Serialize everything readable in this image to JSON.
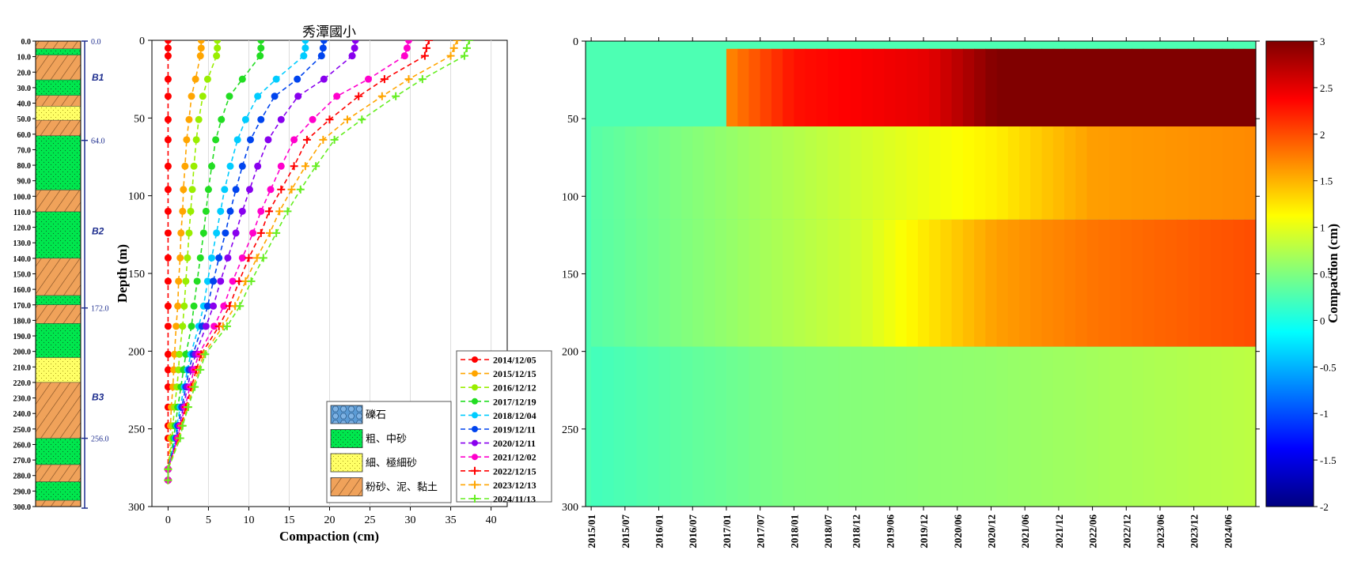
{
  "figure_title": "秀潭國小",
  "strata": {
    "depth_ticks": [
      "0.0",
      "10.0",
      "20.0",
      "30.0",
      "40.0",
      "50.0",
      "60.0",
      "70.0",
      "80.0",
      "90.0",
      "100.0",
      "110.0",
      "120.0",
      "130.0",
      "140.0",
      "150.0",
      "160.0",
      "170.0",
      "180.0",
      "190.0",
      "200.0",
      "210.0",
      "220.0",
      "230.0",
      "240.0",
      "250.0",
      "260.0",
      "270.0",
      "280.0",
      "290.0",
      "300.0"
    ],
    "boundary_labels": [
      {
        "depth": 0,
        "label": "0.0"
      },
      {
        "depth": 64,
        "label": "64.0"
      },
      {
        "depth": 172,
        "label": "172.0"
      },
      {
        "depth": 256,
        "label": "256.0"
      }
    ],
    "aquifer_labels": [
      {
        "depth": 23,
        "label": "B1"
      },
      {
        "depth": 122,
        "label": "B2"
      },
      {
        "depth": 229,
        "label": "B3"
      }
    ],
    "layers": [
      {
        "top": 0,
        "bottom": 5,
        "type": "silt"
      },
      {
        "top": 5,
        "bottom": 9,
        "type": "coarse"
      },
      {
        "top": 9,
        "bottom": 25,
        "type": "silt"
      },
      {
        "top": 25,
        "bottom": 35,
        "type": "coarse"
      },
      {
        "top": 35,
        "bottom": 42,
        "type": "silt"
      },
      {
        "top": 42,
        "bottom": 51,
        "type": "fine"
      },
      {
        "top": 51,
        "bottom": 61,
        "type": "silt"
      },
      {
        "top": 61,
        "bottom": 96,
        "type": "coarse"
      },
      {
        "top": 96,
        "bottom": 110,
        "type": "silt"
      },
      {
        "top": 110,
        "bottom": 140,
        "type": "coarse"
      },
      {
        "top": 140,
        "bottom": 164,
        "type": "silt"
      },
      {
        "top": 164,
        "bottom": 170,
        "type": "coarse"
      },
      {
        "top": 170,
        "bottom": 182,
        "type": "silt"
      },
      {
        "top": 182,
        "bottom": 204,
        "type": "coarse"
      },
      {
        "top": 204,
        "bottom": 220,
        "type": "fine"
      },
      {
        "top": 220,
        "bottom": 256,
        "type": "silt"
      },
      {
        "top": 256,
        "bottom": 273,
        "type": "coarse"
      },
      {
        "top": 273,
        "bottom": 284,
        "type": "silt"
      },
      {
        "top": 284,
        "bottom": 296,
        "type": "coarse"
      },
      {
        "top": 296,
        "bottom": 300,
        "type": "silt"
      }
    ]
  },
  "lithology_legend": [
    {
      "type": "gravel",
      "label": "礫石"
    },
    {
      "type": "coarse",
      "label": "粗、中砂"
    },
    {
      "type": "fine",
      "label": "細、極細砂"
    },
    {
      "type": "silt",
      "label": "粉砂、泥、黏土"
    }
  ],
  "chart_data": [
    {
      "type": "line",
      "xlabel": "Compaction (cm)",
      "ylabel": "Depth (m)",
      "xlim": [
        -2,
        42
      ],
      "ylim": [
        300,
        0
      ],
      "x_ticks": [
        "0",
        "5",
        "10",
        "15",
        "20",
        "25",
        "30",
        "35",
        "40"
      ],
      "y_ticks": [
        "0",
        "50",
        "100",
        "150",
        "200",
        "250",
        "300"
      ],
      "grid": "vertical",
      "legend_position": "lower-right",
      "depths": [
        0,
        5,
        10,
        25,
        36,
        51,
        64,
        81,
        96,
        110,
        124,
        140,
        155,
        171,
        184,
        202,
        212,
        223,
        236,
        248,
        256,
        276,
        283
      ],
      "series": [
        {
          "name": "2014/12/05",
          "color": "#ff0000",
          "marker": "circle",
          "values": [
            0,
            0,
            0,
            0,
            0,
            0,
            0,
            0,
            0,
            0,
            0,
            0,
            0,
            0,
            0,
            0,
            0,
            0,
            0,
            0,
            0,
            0,
            0
          ]
        },
        {
          "name": "2015/12/15",
          "color": "#ffa500",
          "marker": "circle",
          "values": [
            4.1,
            4.1,
            4.0,
            3.4,
            2.9,
            2.6,
            2.3,
            2.1,
            1.9,
            1.8,
            1.6,
            1.5,
            1.3,
            1.2,
            1.0,
            0.8,
            0.7,
            0.6,
            0.4,
            0.3,
            0.3,
            0.0,
            0.0
          ]
        },
        {
          "name": "2016/12/12",
          "color": "#99ee00",
          "marker": "circle",
          "values": [
            6.1,
            6.1,
            6.0,
            4.9,
            4.3,
            3.8,
            3.5,
            3.2,
            3.0,
            2.8,
            2.6,
            2.4,
            2.2,
            2.0,
            1.8,
            1.4,
            1.3,
            1.1,
            0.8,
            0.6,
            0.5,
            0.0,
            0.0
          ]
        },
        {
          "name": "2017/12/19",
          "color": "#22dd22",
          "marker": "circle",
          "values": [
            11.5,
            11.5,
            11.4,
            9.2,
            7.6,
            6.6,
            5.9,
            5.4,
            5.0,
            4.7,
            4.4,
            4.0,
            3.6,
            3.2,
            2.9,
            2.2,
            1.9,
            1.6,
            1.2,
            0.9,
            0.7,
            0.0,
            0.0
          ]
        },
        {
          "name": "2018/12/04",
          "color": "#00ccff",
          "marker": "circle",
          "values": [
            17.0,
            17.0,
            16.8,
            13.4,
            11.1,
            9.6,
            8.6,
            7.7,
            7.0,
            6.5,
            6.0,
            5.4,
            4.9,
            4.4,
            3.8,
            2.8,
            2.4,
            2.0,
            1.5,
            1.1,
            0.9,
            0.0,
            0.0
          ]
        },
        {
          "name": "2019/12/11",
          "color": "#0044ee",
          "marker": "circle",
          "values": [
            19.3,
            19.2,
            19.0,
            16.0,
            13.2,
            11.5,
            10.2,
            9.2,
            8.4,
            7.7,
            7.1,
            6.3,
            5.6,
            4.9,
            4.2,
            3.1,
            2.6,
            2.2,
            1.7,
            1.2,
            1.0,
            0.0,
            0.0
          ]
        },
        {
          "name": "2020/12/11",
          "color": "#8800ee",
          "marker": "circle",
          "values": [
            23.2,
            23.1,
            22.8,
            19.3,
            16.1,
            14.0,
            12.4,
            11.1,
            10.1,
            9.2,
            8.4,
            7.4,
            6.5,
            5.6,
            4.7,
            3.4,
            2.9,
            2.4,
            1.9,
            1.4,
            1.1,
            0.0,
            0.0
          ]
        },
        {
          "name": "2021/12/02",
          "color": "#ff00cc",
          "marker": "circle",
          "values": [
            29.8,
            29.6,
            29.3,
            24.8,
            20.9,
            17.9,
            15.6,
            14.0,
            12.7,
            11.5,
            10.5,
            9.2,
            8.0,
            6.9,
            5.7,
            3.8,
            3.2,
            2.7,
            2.1,
            1.5,
            1.2,
            0.0,
            0.0
          ]
        },
        {
          "name": "2022/12/15",
          "color": "#ff0000",
          "marker": "plus",
          "values": [
            32.3,
            32.0,
            31.8,
            26.8,
            23.6,
            20.0,
            17.2,
            15.6,
            14.0,
            12.5,
            11.5,
            10.0,
            8.8,
            7.6,
            6.3,
            4.1,
            3.5,
            2.9,
            2.2,
            1.6,
            1.3,
            0.0,
            0.0
          ]
        },
        {
          "name": "2023/12/13",
          "color": "#ffa500",
          "marker": "plus",
          "values": [
            35.8,
            35.4,
            35.0,
            29.8,
            26.5,
            22.2,
            19.2,
            17.0,
            15.3,
            13.8,
            12.6,
            11.0,
            9.6,
            8.3,
            6.8,
            4.4,
            3.8,
            3.1,
            2.4,
            1.7,
            1.4,
            0.0,
            0.0
          ]
        },
        {
          "name": "2024/11/13",
          "color": "#66ee22",
          "marker": "plus",
          "values": [
            37.3,
            37.0,
            36.7,
            31.5,
            28.2,
            24.0,
            20.6,
            18.3,
            16.4,
            14.8,
            13.4,
            11.8,
            10.3,
            8.9,
            7.3,
            4.6,
            4.0,
            3.3,
            2.5,
            1.8,
            1.5,
            0.0,
            0.0
          ]
        }
      ]
    },
    {
      "type": "heatmap",
      "ylabel": "",
      "ylim": [
        300,
        0
      ],
      "y_ticks": [
        "0",
        "50",
        "100",
        "150",
        "200",
        "250",
        "300"
      ],
      "x_ticks": [
        "2015/01",
        "2015/07",
        "2016/01",
        "2016/07",
        "2017/01",
        "2017/07",
        "2018/01",
        "2018/07",
        "2018/12",
        "2019/06",
        "2019/12",
        "2020/06",
        "2020/12",
        "2021/06",
        "2021/12",
        "2022/06",
        "2022/12",
        "2023/06",
        "2023/12",
        "2024/06"
      ],
      "x_range": [
        "2014/12",
        "2024/11"
      ],
      "colorbar_label": "Compaction (cm)",
      "colorbar_range": [
        -2,
        3
      ],
      "colorbar_ticks": [
        "3",
        "2.5",
        "2",
        "1.5",
        "1",
        "0.5",
        "0",
        "-0.5",
        "-1",
        "-1.5",
        "-2"
      ],
      "colormap": "jet",
      "description": "",
      "zones": [
        {
          "depth": [
            5,
            55
          ],
          "start": "2017/01",
          "values": {
            "2017/01": 1.7,
            "2018/01": 2.3,
            "2019/01": 2.4,
            "2020/01": 2.5,
            "2021/01": 3.0,
            "2024/11": 3.0
          }
        },
        {
          "depth": [
            55,
            115
          ],
          "start": "2015/01",
          "values": {
            "2015/01": 0.3,
            "2017/01": 0.6,
            "2019/01": 0.9,
            "2021/01": 1.2,
            "2022/06": 1.6,
            "2024/11": 1.7
          }
        },
        {
          "depth": [
            115,
            197
          ],
          "start": "2015/01",
          "values": {
            "2015/01": 0.3,
            "2017/01": 0.6,
            "2019/01": 0.9,
            "2021/01": 1.6,
            "2022/06": 1.8,
            "2024/11": 2.0
          }
        },
        {
          "depth": [
            197,
            300
          ],
          "start": "2015/01",
          "values": {
            "2015/01": 0.2,
            "2018/01": 0.5,
            "2021/01": 0.6,
            "2024/11": 0.8
          }
        }
      ]
    }
  ]
}
